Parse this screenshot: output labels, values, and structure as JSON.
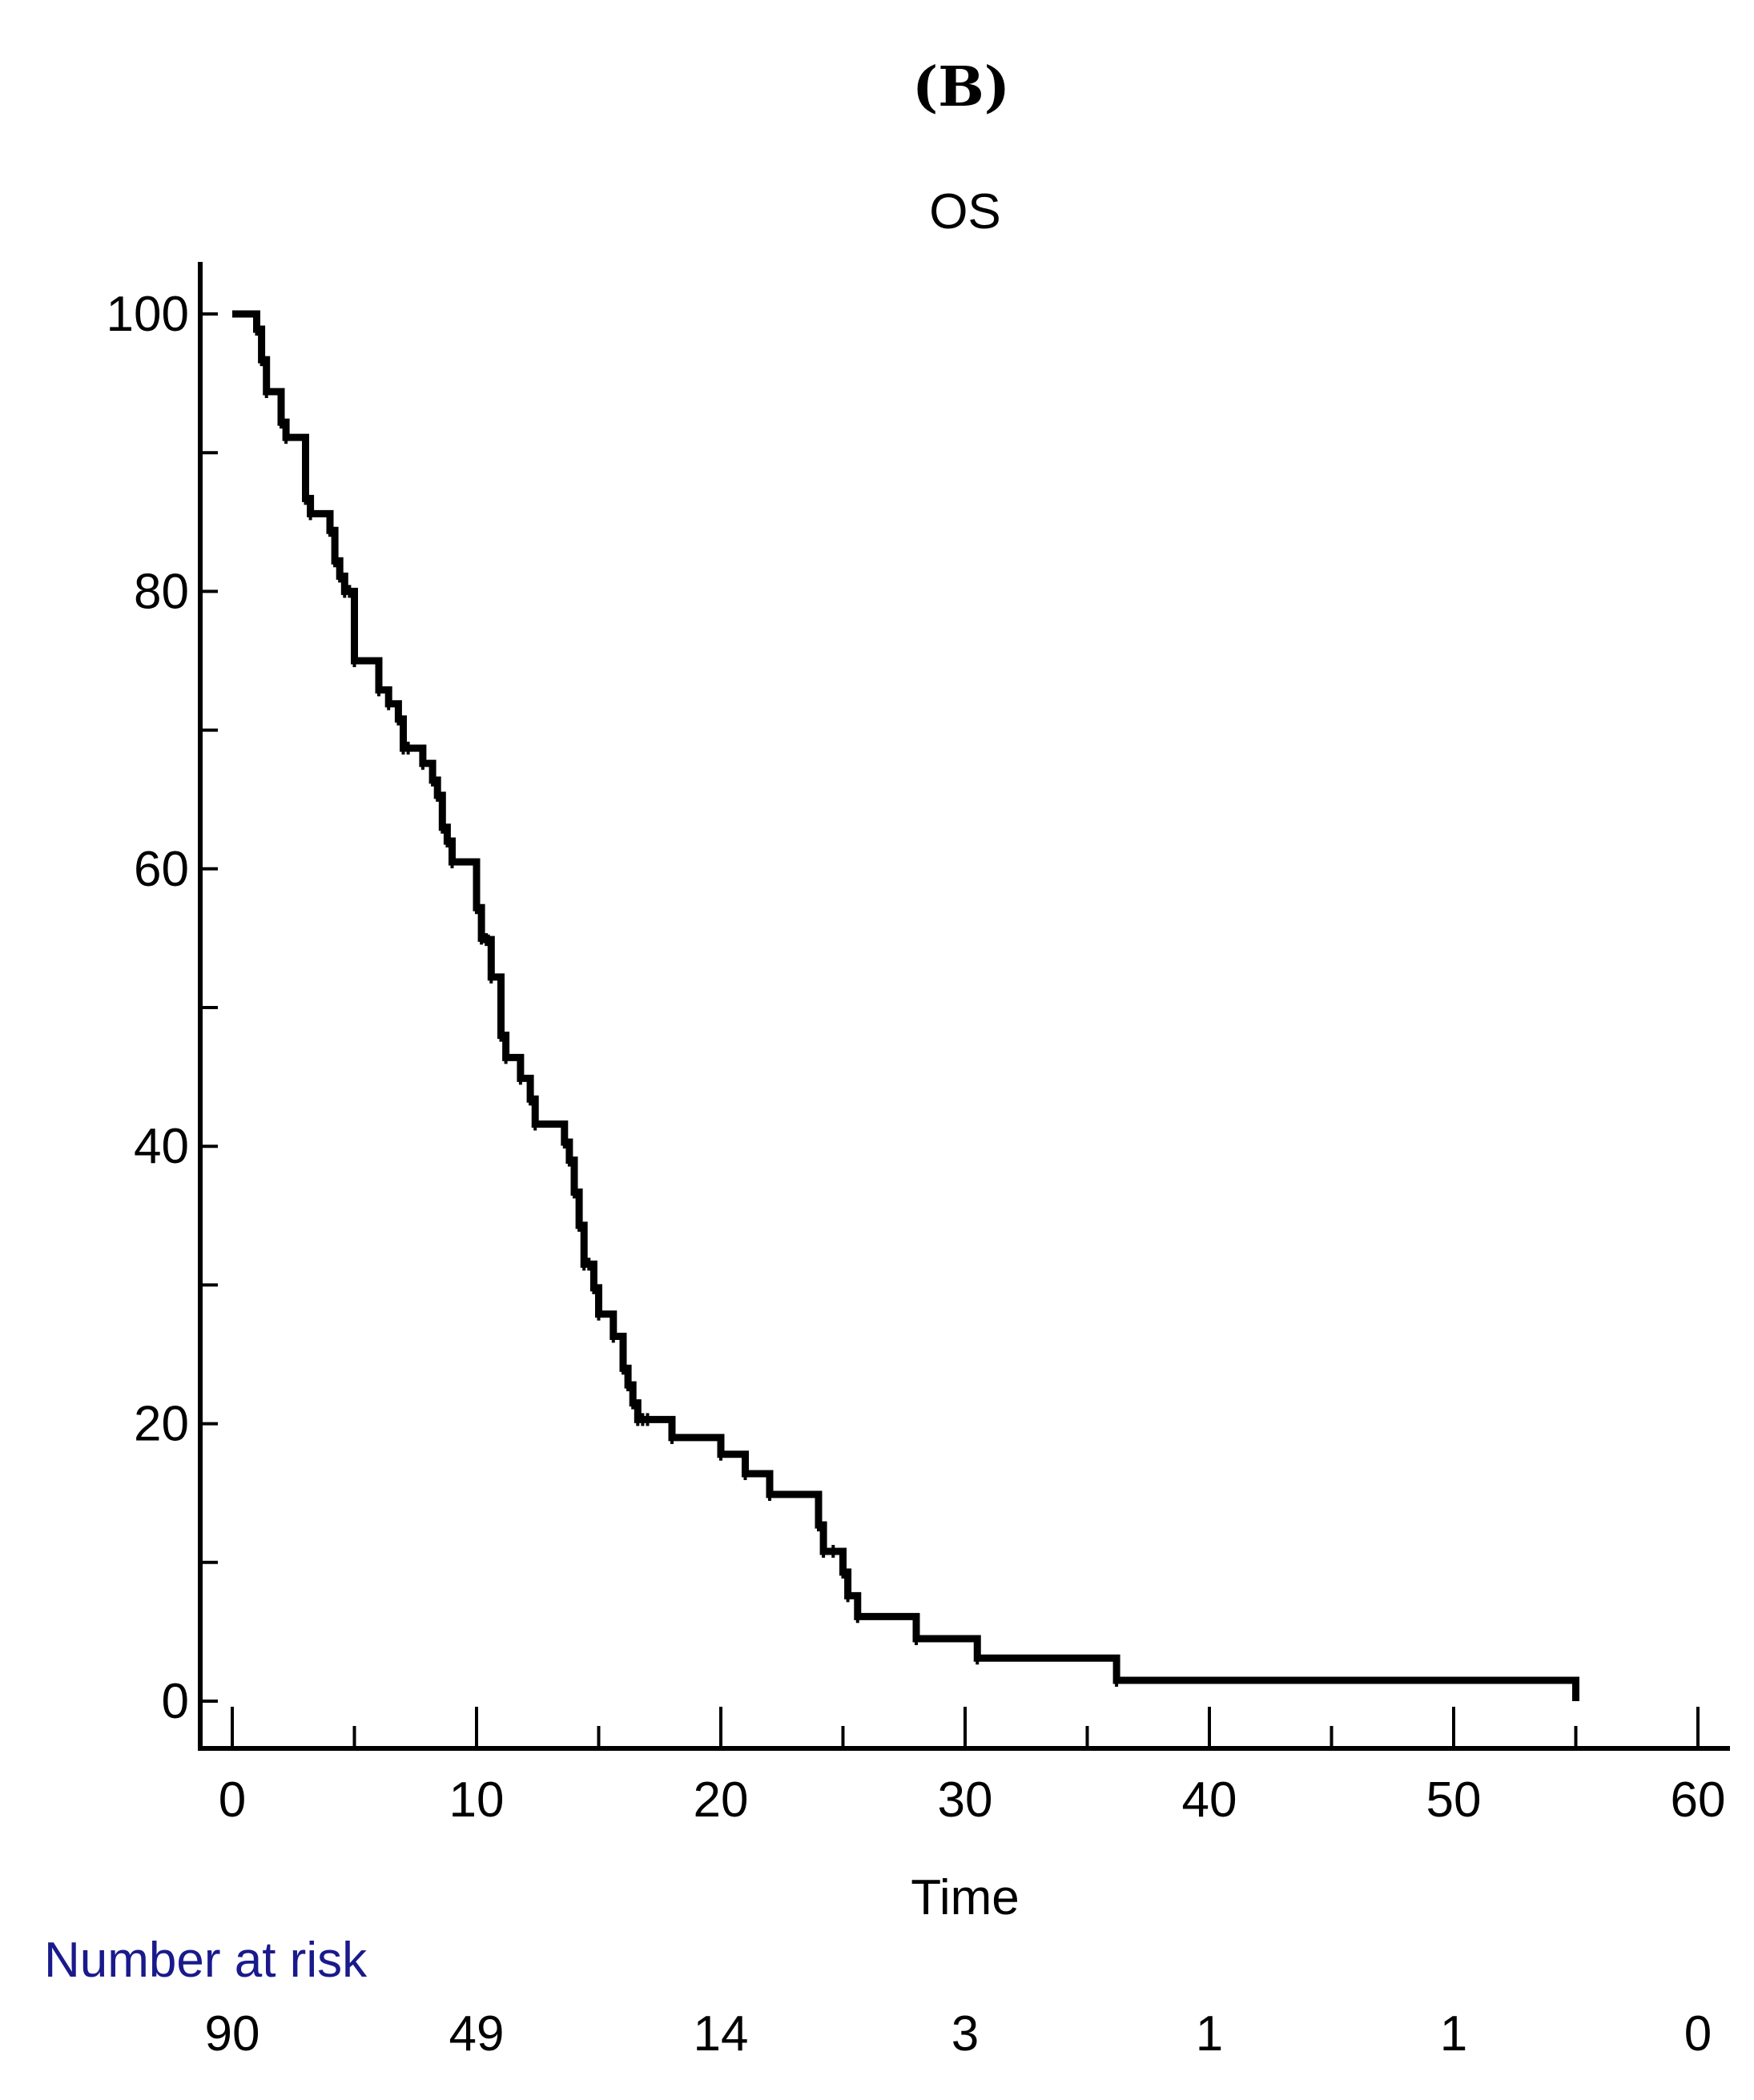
{
  "panel_label": "(B)",
  "colors": {
    "ink": "#000000",
    "risk_title": "#1a1a8c",
    "background": "#ffffff"
  },
  "chart_data": {
    "type": "line",
    "step": true,
    "title": "OS",
    "xlabel": "Time",
    "ylabel": "",
    "xlim": [
      0,
      60
    ],
    "ylim": [
      0,
      100
    ],
    "x_ticks": [
      0,
      10,
      20,
      30,
      40,
      50,
      60
    ],
    "y_ticks": [
      0,
      20,
      40,
      60,
      80,
      100
    ],
    "grid": false,
    "legend": "none",
    "series": [
      {
        "x": [
          0,
          1,
          1.2,
          1.4,
          2.0,
          2.2,
          3.0,
          3.2,
          4.0,
          4.2,
          4.4,
          4.6,
          4.8,
          5.0,
          6.0,
          6.4,
          6.8,
          7.0,
          7.2,
          7.8,
          8.2,
          8.4,
          8.6,
          8.8,
          9.0,
          10.0,
          10.2,
          10.4,
          10.6,
          11.0,
          11.2,
          11.8,
          12.2,
          12.4,
          13.6,
          13.8,
          14.0,
          14.2,
          14.4,
          14.6,
          14.8,
          15.0,
          15.6,
          16.0,
          16.2,
          16.4,
          16.6,
          16.8,
          17.0,
          18.0,
          20.0,
          21.0,
          22.0,
          24.0,
          24.2,
          24.6,
          25.0,
          25.2,
          25.6,
          28.0,
          30.5,
          36.2,
          55.0
        ],
        "y": [
          100,
          98.9,
          96.7,
          94.4,
          92.2,
          91.1,
          86.7,
          85.6,
          84.4,
          82.2,
          81.1,
          80.0,
          80.0,
          75.0,
          72.9,
          71.9,
          70.8,
          68.7,
          68.7,
          67.6,
          66.4,
          65.3,
          63.0,
          62.0,
          60.5,
          57.2,
          55.0,
          54.9,
          52.2,
          48.0,
          46.4,
          44.9,
          43.4,
          41.6,
          40.3,
          39.0,
          36.7,
          34.3,
          31.5,
          31.5,
          29.8,
          27.9,
          26.3,
          24.0,
          22.8,
          21.5,
          20.3,
          20.3,
          20.3,
          19.0,
          17.8,
          16.4,
          14.9,
          12.7,
          10.8,
          10.8,
          9.3,
          7.6,
          6.1,
          4.5,
          3.1,
          1.5,
          0.0
        ]
      }
    ]
  },
  "risk_table": {
    "title": "Number at risk",
    "times": [
      0,
      10,
      20,
      30,
      40,
      50,
      60
    ],
    "values": [
      "90",
      "49",
      "14",
      "3",
      "1",
      "1",
      "0"
    ]
  }
}
